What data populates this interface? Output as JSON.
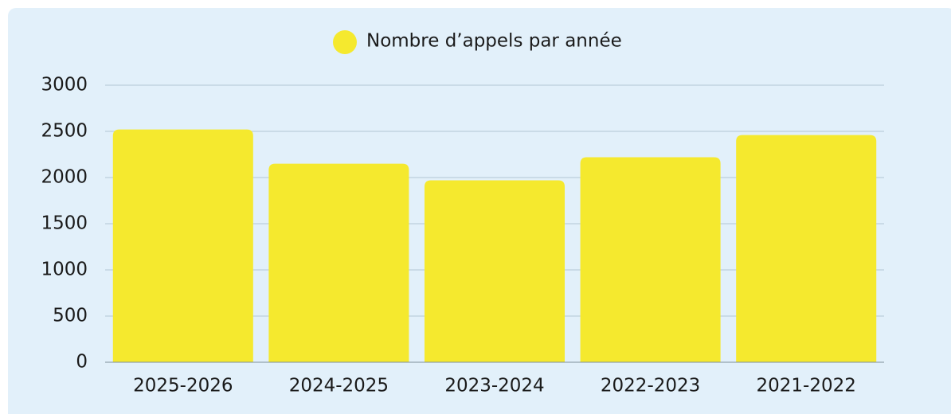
{
  "chart_data": {
    "type": "bar",
    "legend_label": "Nombre d’appels par année",
    "categories": [
      "2025-2026",
      "2024-2025",
      "2023-2024",
      "2022-2023",
      "2021-2022"
    ],
    "values": [
      2520,
      2150,
      1970,
      2220,
      2460
    ],
    "color": "#f5e92e",
    "ylim": [
      0,
      3000
    ],
    "yticks": [
      0,
      500,
      1000,
      1500,
      2000,
      2500,
      3000
    ],
    "grid": true
  }
}
